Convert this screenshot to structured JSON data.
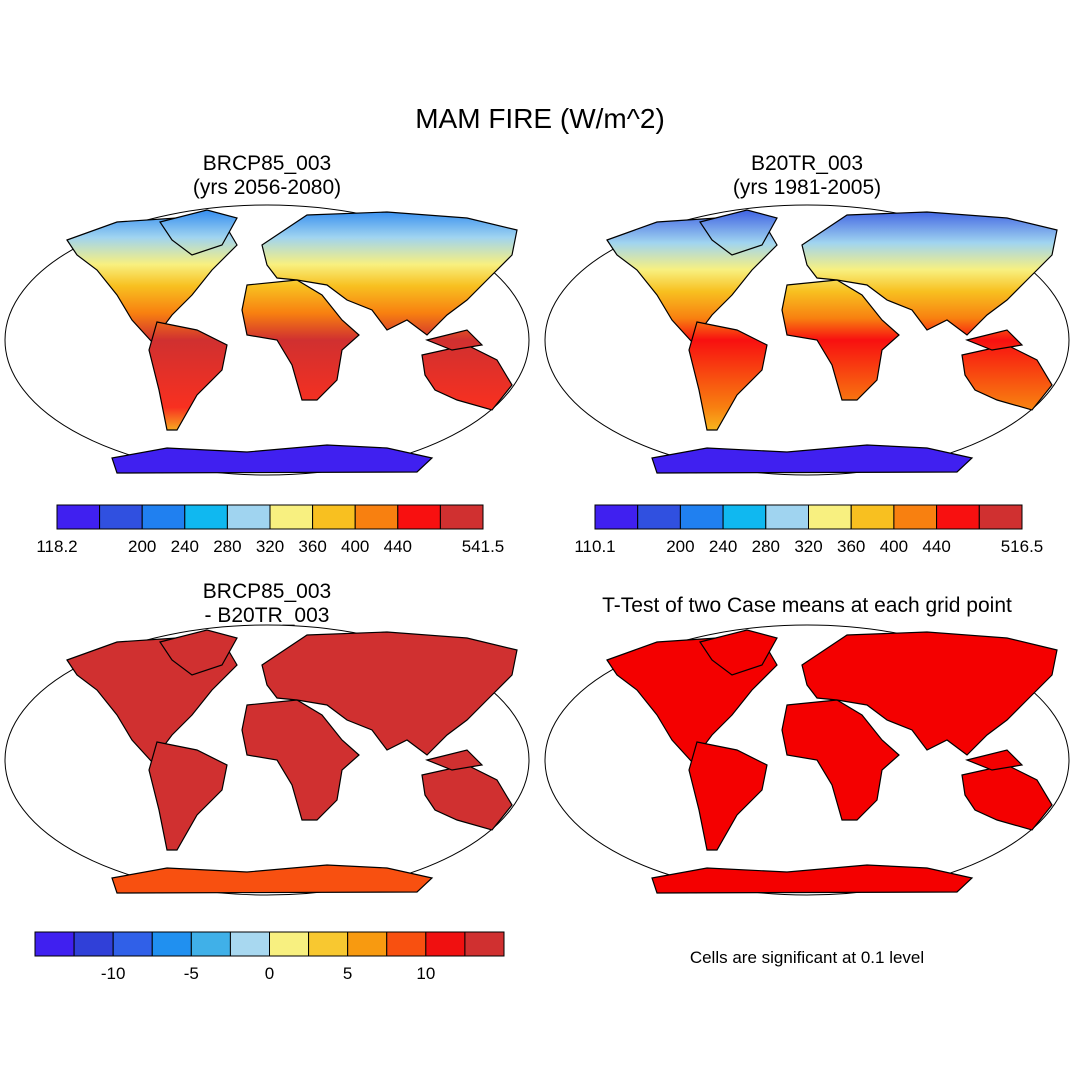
{
  "title": "MAM FIRE (W/m^2)",
  "panels": [
    {
      "title": [
        "BRCP85_003",
        "(yrs 2056-2080)"
      ],
      "colorbar": {
        "colors": [
          "#4020f0",
          "#3050e0",
          "#2080f0",
          "#10b8f0",
          "#a0d4f0",
          "#f8f080",
          "#f8c020",
          "#f88010",
          "#f81010",
          "#d03030"
        ],
        "labels": [
          118.2,
          null,
          200,
          240,
          280,
          320,
          360,
          400,
          440,
          null,
          541.5
        ]
      }
    },
    {
      "title": [
        "B20TR_003",
        "(yrs 1981-2005)"
      ],
      "colorbar": {
        "colors": [
          "#4020f0",
          "#3050e0",
          "#2080f0",
          "#10b8f0",
          "#a0d4f0",
          "#f8f080",
          "#f8c020",
          "#f88010",
          "#f81010",
          "#d03030"
        ],
        "labels": [
          110.1,
          null,
          200,
          240,
          280,
          320,
          360,
          400,
          440,
          null,
          516.5
        ]
      }
    },
    {
      "title": [
        "BRCP85_003",
        "- B20TR_003"
      ],
      "colorbar": {
        "colors": [
          "#4020f0",
          "#3040d8",
          "#3060e8",
          "#2090f0",
          "#40b0e8",
          "#a8d8f0",
          "#f8f080",
          "#f8c830",
          "#f89a10",
          "#f85010",
          "#f01010",
          "#d03030"
        ],
        "labels": [
          null,
          null,
          -10,
          null,
          -5,
          null,
          0,
          null,
          5,
          null,
          10,
          null,
          null
        ]
      }
    },
    {
      "title": [
        "T-Test of two Case means at each grid point"
      ],
      "note": "Cells are significant at 0.1 level"
    }
  ]
}
